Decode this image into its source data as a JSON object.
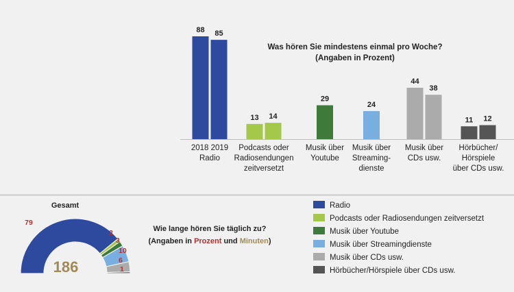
{
  "chart_data": [
    {
      "type": "bar",
      "title": "Was hören Sie mindestens einmal pro Woche?",
      "subtitle": "(Angaben in Prozent)",
      "categories": [
        {
          "label_lines": [
            "2018 2019",
            "Radio"
          ],
          "color": "#2e4a9e",
          "values": [
            88,
            85
          ]
        },
        {
          "label_lines": [
            "Podcasts oder",
            "Radiosendungen",
            "zeitversetzt"
          ],
          "color": "#a3c84a",
          "values": [
            13,
            14
          ]
        },
        {
          "label_lines": [
            "Musik über",
            "Youtube"
          ],
          "color": "#3e7a3a",
          "values": [
            29
          ]
        },
        {
          "label_lines": [
            "Musik über",
            "Streaming-",
            "dienste"
          ],
          "color": "#79aee0",
          "values": [
            24
          ]
        },
        {
          "label_lines": [
            "Musik über",
            "CDs usw."
          ],
          "color": "#ababab",
          "values": [
            44,
            38
          ]
        },
        {
          "label_lines": [
            "Hörbücher/",
            "Hörspiele",
            "über CDs usw."
          ],
          "color": "#555555",
          "values": [
            11,
            12
          ]
        }
      ],
      "ylim": [
        0,
        100
      ]
    },
    {
      "type": "pie",
      "title": "Gesamt",
      "total": "186",
      "slices": [
        {
          "name": "Radio",
          "value": 79,
          "color": "#2e4a9e",
          "label_color": "#b03030"
        },
        {
          "name": "Podcasts oder Radiosendungen zeitversetzt",
          "value": 2,
          "color": "#a3c84a",
          "label_color": "#b03030"
        },
        {
          "name": "Musik über Youtube",
          "value": 3,
          "color": "#3e7a3a",
          "label_color": "#b03030"
        },
        {
          "name": "Musik über Streamingdienste",
          "value": 10,
          "color": "#79aee0",
          "label_color": "#b03030"
        },
        {
          "name": "Musik über CDs usw.",
          "value": 6,
          "color": "#ababab",
          "label_color": "#b03030"
        },
        {
          "name": "Hörbücher/Hörspiele über CDs usw.",
          "value": 1,
          "color": "#555555",
          "label_color": "#b03030"
        }
      ]
    }
  ],
  "question2": {
    "line1": "Wie lange hören Sie täglich zu?",
    "line2_prefix": "(Angaben in ",
    "word_percent": "Prozent",
    "word_and": " und ",
    "word_minutes": "Minuten",
    "line2_suffix": ")",
    "percent_color": "#b03030",
    "minutes_color": "#a08a55"
  },
  "legend": [
    {
      "label": "Radio",
      "color": "#2e4a9e"
    },
    {
      "label": "Podcasts oder Radiosendungen zeitversetzt",
      "color": "#a3c84a"
    },
    {
      "label": "Musik über Youtube",
      "color": "#3e7a3a"
    },
    {
      "label": "Musik über Streamingdienste",
      "color": "#79aee0"
    },
    {
      "label": "Musik über CDs usw.",
      "color": "#ababab"
    },
    {
      "label": "Hörbücher/Hörspiele über CDs usw.",
      "color": "#555555"
    }
  ],
  "colors": {
    "background": "#f1f1f1",
    "text": "#222222",
    "divider": "#bdbdbd",
    "total_color": "#a08a55"
  }
}
